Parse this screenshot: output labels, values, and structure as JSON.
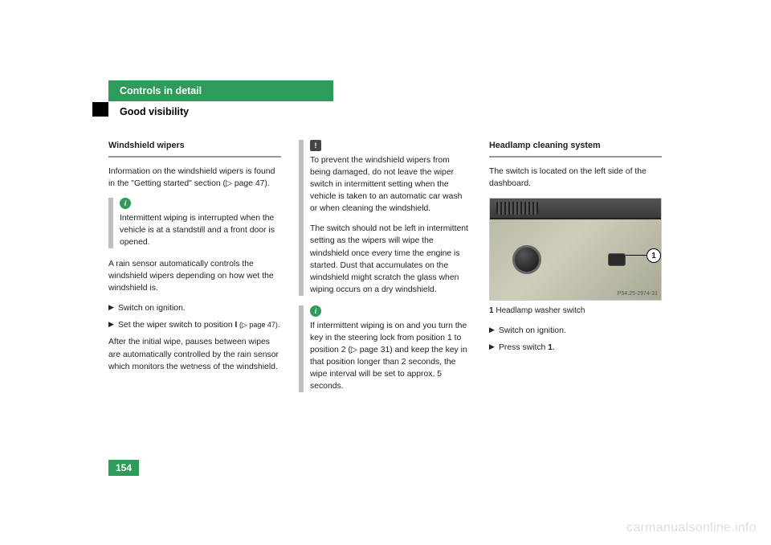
{
  "header": {
    "chapter": "Controls in detail",
    "section": "Good visibility"
  },
  "col1": {
    "title": "Windshield wipers",
    "p1": "Information on the windshield wipers is found in the \"Getting started\" section (▷ page 47).",
    "info1": "Intermittent wiping is interrupted when the vehicle is at a standstill and a front door is opened.",
    "p2": "A rain sensor automatically controls the windshield wipers depending on how wet the windshield is.",
    "b1": "Switch on ignition.",
    "b2a": "Set the wiper switch to position ",
    "b2b": "I",
    "b2c": " (▷ page 47).",
    "p3": "After the initial wipe, pauses between wipes are automatically controlled by the rain sensor which monitors the wetness of the windshield."
  },
  "col2": {
    "warn": "To prevent the windshield wipers from being damaged, do not leave the wiper switch in intermittent setting when the vehicle is taken to an automatic car wash or when cleaning the windshield.",
    "warn2": "The switch should not be left in intermittent setting as the wipers will wipe the windshield once every time the engine is started. Dust that accumulates on the windshield might scratch the glass when wiping occurs on a dry windshield.",
    "info": "If intermittent wiping is on and you turn the key in the steering lock from position 1 to position 2 (▷ page 31) and keep the key in that position longer than 2 seconds, the wipe interval will be set to approx. 5 seconds."
  },
  "col3": {
    "title": "Headlamp cleaning system",
    "p1": "The switch is located on the left side of the dashboard.",
    "photo_code": "P54.25-2974-31",
    "caption_num": "1",
    "caption_text": " Headlamp washer switch",
    "b1": "Switch on ignition.",
    "b2a": "Press switch ",
    "b2b": "1",
    "b2c": "."
  },
  "page_number": "154",
  "watermark": "carmanualsonline.info",
  "leader_num": "1"
}
